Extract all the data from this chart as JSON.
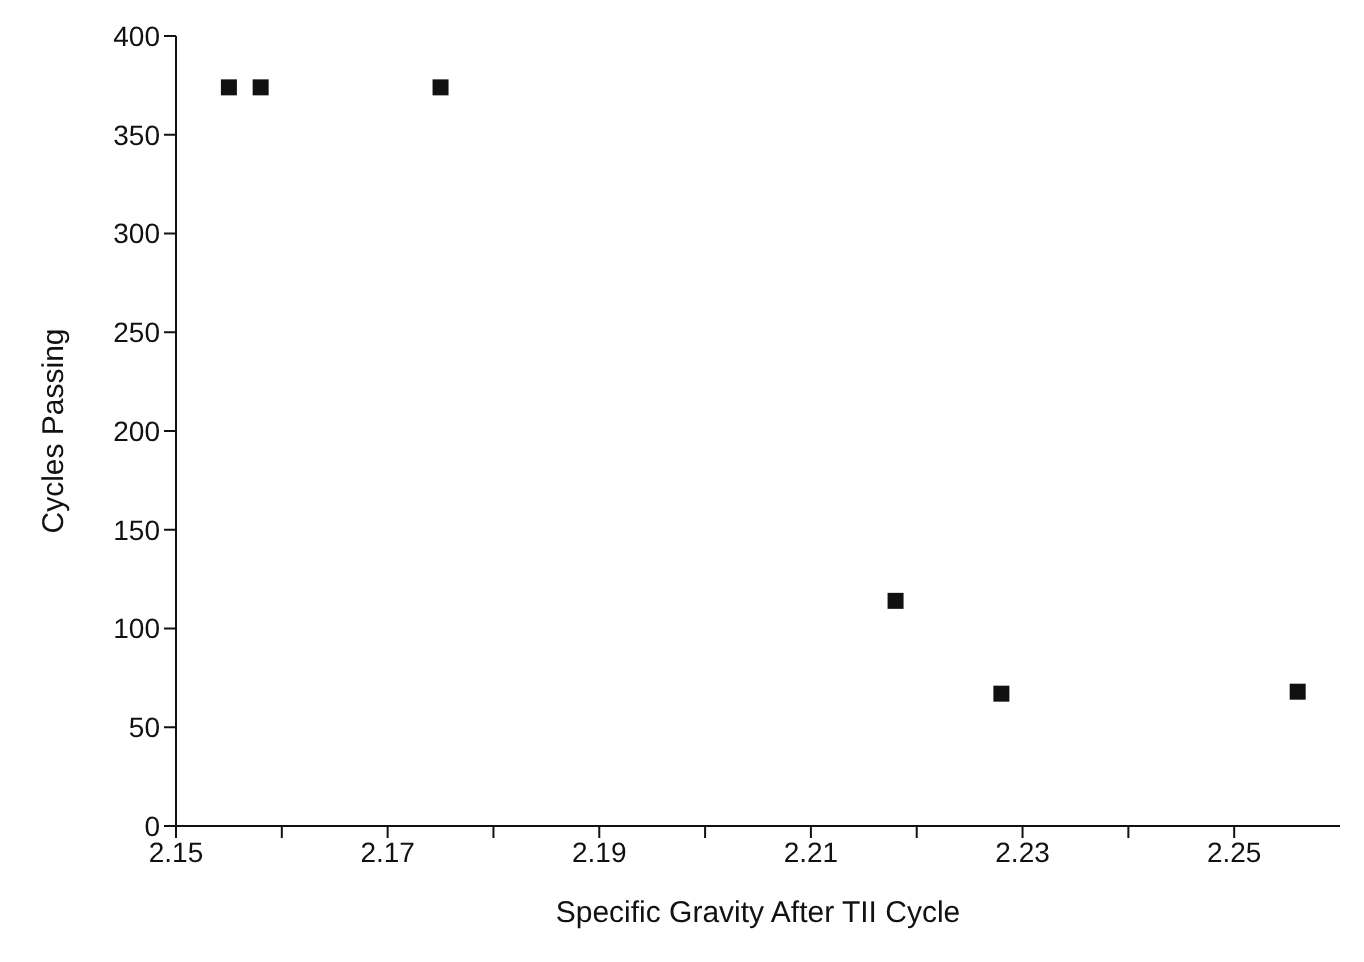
{
  "chart_data": {
    "type": "scatter",
    "xlabel": "Specific Gravity After TII Cycle",
    "ylabel": "Cycles Passing",
    "x": [
      2.155,
      2.158,
      2.175,
      2.218,
      2.228,
      2.256
    ],
    "values": [
      374,
      374,
      374,
      114,
      67,
      68
    ],
    "color": "#111111",
    "marker": "square",
    "xlim": [
      2.15,
      2.26
    ],
    "xticks": [
      2.15,
      {
        "value": 2.16,
        "label": null
      },
      2.17,
      {
        "value": 2.18,
        "label": null
      },
      2.19,
      {
        "value": 2.2,
        "label": null
      },
      2.21,
      {
        "value": 2.22,
        "label": null
      },
      2.23,
      {
        "value": 2.24,
        "label": null
      },
      2.25
    ],
    "ylim": [
      0,
      400
    ],
    "yticks": [
      0,
      50,
      100,
      150,
      200,
      250,
      300,
      350,
      400
    ],
    "grid": false,
    "legend": false
  }
}
